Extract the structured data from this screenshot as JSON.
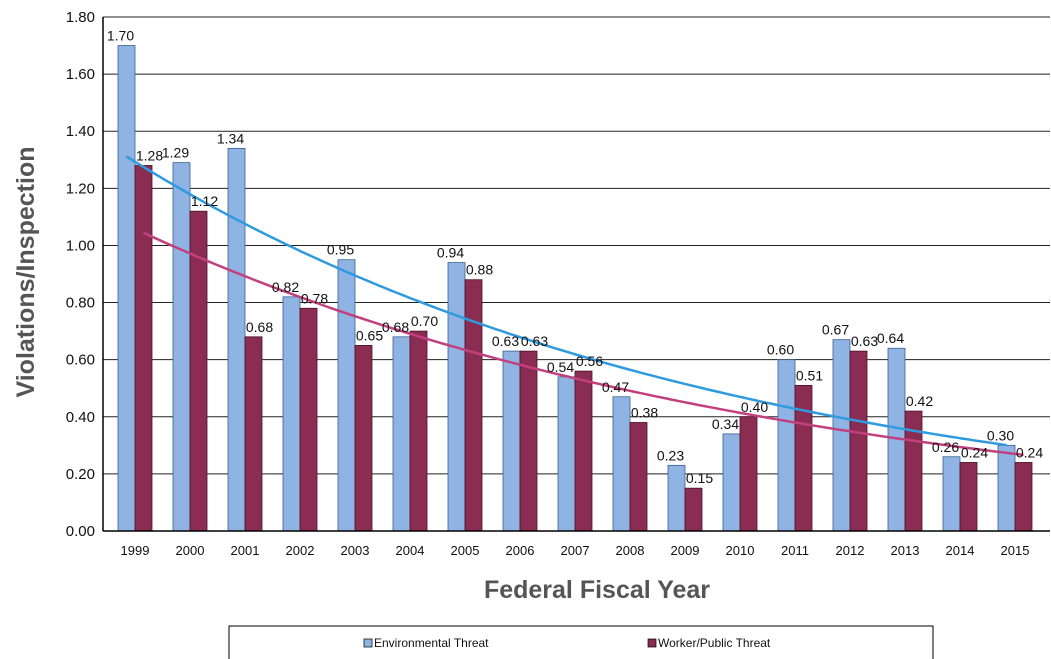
{
  "chart_data": {
    "type": "bar",
    "xlabel": "Federal Fiscal Year",
    "ylabel": "Violations/Inspection",
    "categories": [
      "1999",
      "2000",
      "2001",
      "2002",
      "2003",
      "2004",
      "2005",
      "2006",
      "2007",
      "2008",
      "2009",
      "2010",
      "2011",
      "2012",
      "2013",
      "2014",
      "2015"
    ],
    "ylim": [
      0,
      1.8
    ],
    "yticks": [
      "0.00",
      "0.20",
      "0.40",
      "0.60",
      "0.80",
      "1.00",
      "1.20",
      "1.40",
      "1.60",
      "1.80"
    ],
    "grid": true,
    "legend_position": "bottom",
    "series": [
      {
        "name": "Environmental Threat",
        "color": "#8FB4E3",
        "values": [
          1.7,
          1.29,
          1.34,
          0.82,
          0.95,
          0.68,
          0.94,
          0.63,
          0.54,
          0.47,
          0.23,
          0.34,
          0.6,
          0.67,
          0.64,
          0.26,
          0.3
        ],
        "labels": [
          "1.70",
          "1.29",
          "1.34",
          "0.82",
          "0.95",
          "0.68",
          "0.94",
          "0.63",
          "0.54",
          "0.47",
          "0.23",
          "0.34",
          "0.60",
          "0.67",
          "0.64",
          "0.26",
          "0.30"
        ]
      },
      {
        "name": "Worker/Public Threat",
        "color": "#8B2D52",
        "values": [
          1.28,
          1.12,
          0.68,
          0.78,
          0.65,
          0.7,
          0.88,
          0.63,
          0.56,
          0.38,
          0.15,
          0.4,
          0.51,
          0.63,
          0.42,
          0.24,
          0.24
        ],
        "labels": [
          "1.28",
          "1.12",
          "0.68",
          "0.78",
          "0.65",
          "0.70",
          "0.88",
          "0.63",
          "0.56",
          "0.38",
          "0.15",
          "0.40",
          "0.51",
          "0.63",
          "0.42",
          "0.24",
          "0.24"
        ]
      }
    ],
    "trendlines": [
      {
        "series": "Environmental Threat",
        "color": "#2E9BE0",
        "type": "exponential"
      },
      {
        "series": "Worker/Public Threat",
        "color": "#C2407E",
        "type": "exponential"
      }
    ]
  }
}
